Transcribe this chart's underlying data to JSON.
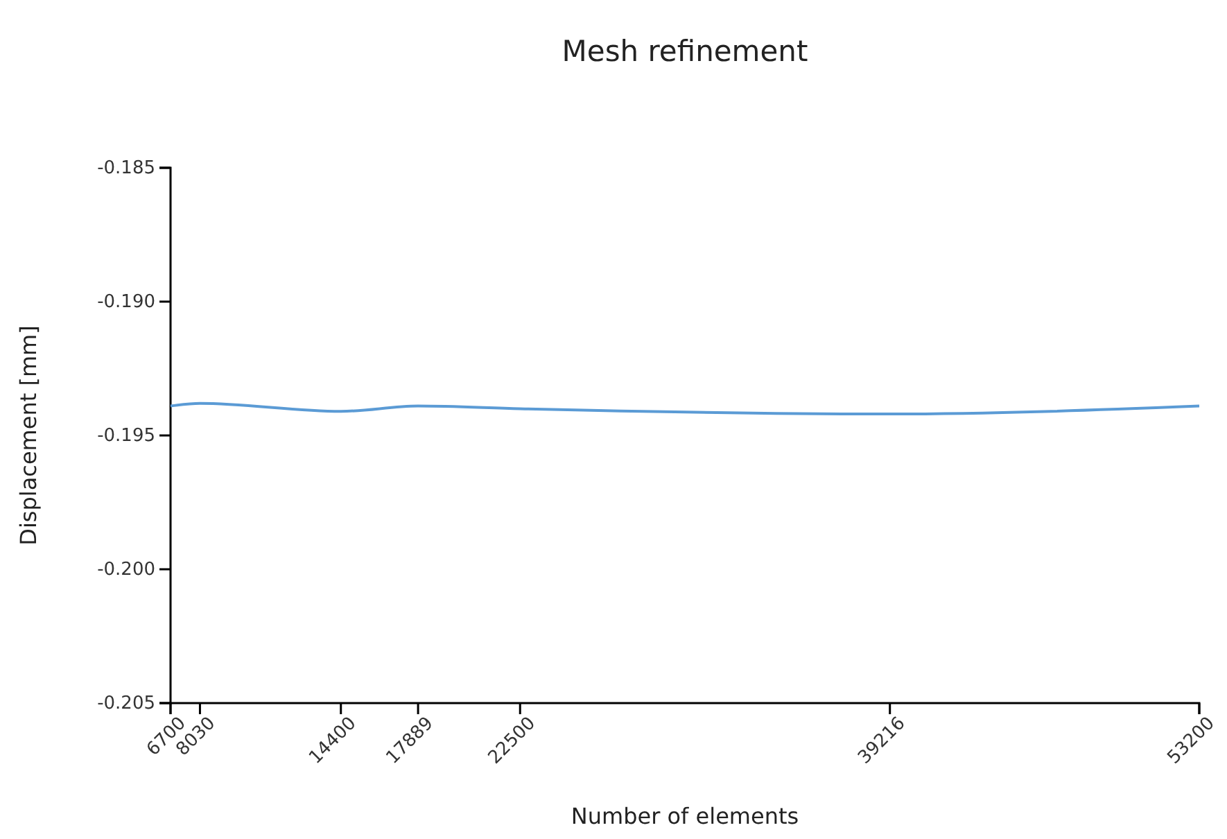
{
  "chart_data": {
    "type": "line",
    "title": "Mesh refinement",
    "xlabel": "Number of elements",
    "ylabel": "Displacement [mm]",
    "x": [
      6700,
      8030,
      14400,
      17889,
      22500,
      39216,
      53200
    ],
    "series": [
      {
        "color": "#5b9bd5",
        "values": [
          -0.1939,
          -0.1938,
          -0.1941,
          -0.1939,
          -0.194,
          -0.1942,
          -0.1939
        ]
      }
    ],
    "xlim": [
      6700,
      53200
    ],
    "xticks": [
      6700,
      8030,
      14400,
      17889,
      22500,
      39216,
      53200
    ],
    "ylim": [
      -0.205,
      -0.185
    ],
    "yticks": [
      {
        "value": -0.205,
        "label": "-0.205"
      },
      {
        "value": -0.2,
        "label": "-0.200"
      },
      {
        "value": -0.195,
        "label": "-0.195"
      },
      {
        "value": -0.19,
        "label": "-0.190"
      },
      {
        "value": -0.185,
        "label": "-0.185"
      }
    ],
    "grid": false,
    "marker": "none",
    "line_style": "solid"
  }
}
